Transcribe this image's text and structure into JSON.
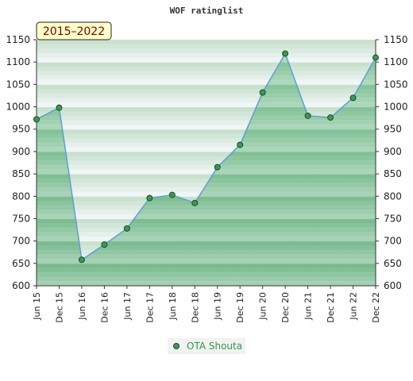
{
  "chart_data": {
    "type": "area",
    "title": "WOF ratinglist",
    "badge": "2015–2022",
    "categories": [
      "Jun 15",
      "Dec 15",
      "Jun 16",
      "Dec 16",
      "Jun 17",
      "Dec 17",
      "Jun 18",
      "Dec 18",
      "Jun 19",
      "Dec 19",
      "Jun 20",
      "Dec 20",
      "Jun 21",
      "Dec 21",
      "Jun 22",
      "Dec 22"
    ],
    "series": [
      {
        "name": "OTA Shouta",
        "values": [
          972,
          998,
          658,
          692,
          728,
          796,
          803,
          785,
          865,
          915,
          1032,
          1119,
          980,
          976,
          1020,
          1110
        ]
      }
    ],
    "ylim": [
      600,
      1150
    ],
    "yticks": [
      "600",
      "650",
      "700",
      "750",
      "800",
      "850",
      "900",
      "950",
      "1000",
      "1050",
      "1100",
      "1150"
    ],
    "xlabel": "",
    "ylabel": "",
    "legend_position": "bottom-center",
    "colors": {
      "line": "#5a9fd4",
      "marker": "#3a9a4e",
      "fill": "#7cc494",
      "band_light": "#eaf6ee",
      "badge_bg": "#fffec8"
    }
  }
}
